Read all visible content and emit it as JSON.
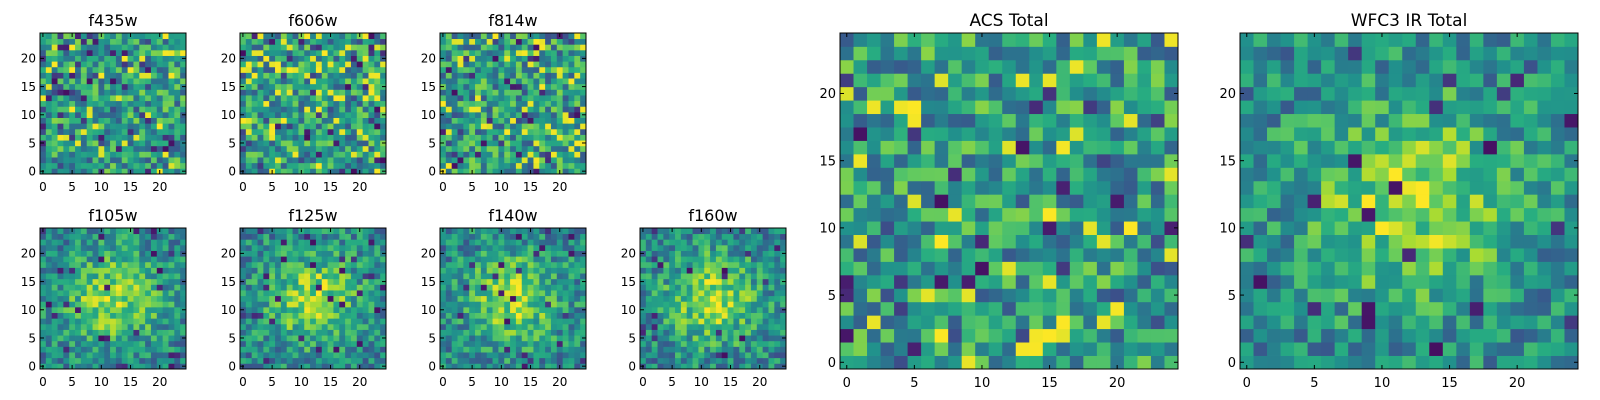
{
  "figure_title": "",
  "chart_data": [
    {
      "type": "heatmap",
      "title": "f435w",
      "grid_size": 25,
      "xticks": [
        0,
        5,
        10,
        15,
        20
      ],
      "yticks": [
        0,
        5,
        10,
        15,
        20
      ],
      "xlim": [
        -0.5,
        24.5
      ],
      "ylim": [
        -0.5,
        24.5
      ],
      "colormap": "viridis",
      "pattern": "noise",
      "seed": 11
    },
    {
      "type": "heatmap",
      "title": "f606w",
      "grid_size": 25,
      "xticks": [
        0,
        5,
        10,
        15,
        20
      ],
      "yticks": [
        0,
        5,
        10,
        15,
        20
      ],
      "xlim": [
        -0.5,
        24.5
      ],
      "ylim": [
        -0.5,
        24.5
      ],
      "colormap": "viridis",
      "pattern": "noise",
      "seed": 23
    },
    {
      "type": "heatmap",
      "title": "f814w",
      "grid_size": 25,
      "xticks": [
        0,
        5,
        10,
        15,
        20
      ],
      "yticks": [
        0,
        5,
        10,
        15,
        20
      ],
      "xlim": [
        -0.5,
        24.5
      ],
      "ylim": [
        -0.5,
        24.5
      ],
      "colormap": "viridis",
      "pattern": "noise",
      "seed": 37
    },
    {
      "type": "heatmap",
      "title": "f105w",
      "grid_size": 25,
      "xticks": [
        0,
        5,
        10,
        15,
        20
      ],
      "yticks": [
        0,
        5,
        10,
        15,
        20
      ],
      "xlim": [
        -0.5,
        24.5
      ],
      "ylim": [
        -0.5,
        24.5
      ],
      "colormap": "viridis",
      "pattern": "source",
      "seed": 41
    },
    {
      "type": "heatmap",
      "title": "f125w",
      "grid_size": 25,
      "xticks": [
        0,
        5,
        10,
        15,
        20
      ],
      "yticks": [
        0,
        5,
        10,
        15,
        20
      ],
      "xlim": [
        -0.5,
        24.5
      ],
      "ylim": [
        -0.5,
        24.5
      ],
      "colormap": "viridis",
      "pattern": "source",
      "seed": 53
    },
    {
      "type": "heatmap",
      "title": "f140w",
      "grid_size": 25,
      "xticks": [
        0,
        5,
        10,
        15,
        20
      ],
      "yticks": [
        0,
        5,
        10,
        15,
        20
      ],
      "xlim": [
        -0.5,
        24.5
      ],
      "ylim": [
        -0.5,
        24.5
      ],
      "colormap": "viridis",
      "pattern": "source",
      "seed": 67
    },
    {
      "type": "heatmap",
      "title": "f160w",
      "grid_size": 25,
      "xticks": [
        0,
        5,
        10,
        15,
        20
      ],
      "yticks": [
        0,
        5,
        10,
        15,
        20
      ],
      "xlim": [
        -0.5,
        24.5
      ],
      "ylim": [
        -0.5,
        24.5
      ],
      "colormap": "viridis",
      "pattern": "source",
      "seed": 79
    },
    {
      "type": "heatmap",
      "title": "ACS Total",
      "grid_size": 25,
      "xticks": [
        0,
        5,
        10,
        15,
        20
      ],
      "yticks": [
        0,
        5,
        10,
        15,
        20
      ],
      "xlim": [
        -0.5,
        24.5
      ],
      "ylim": [
        -0.5,
        24.5
      ],
      "colormap": "viridis",
      "pattern": "noise",
      "seed": 97
    },
    {
      "type": "heatmap",
      "title": "WFC3 IR Total",
      "grid_size": 25,
      "xticks": [
        0,
        5,
        10,
        15,
        20
      ],
      "yticks": [
        0,
        5,
        10,
        15,
        20
      ],
      "xlim": [
        -0.5,
        24.5
      ],
      "ylim": [
        -0.5,
        24.5
      ],
      "colormap": "viridis",
      "pattern": "source",
      "seed": 113
    }
  ]
}
